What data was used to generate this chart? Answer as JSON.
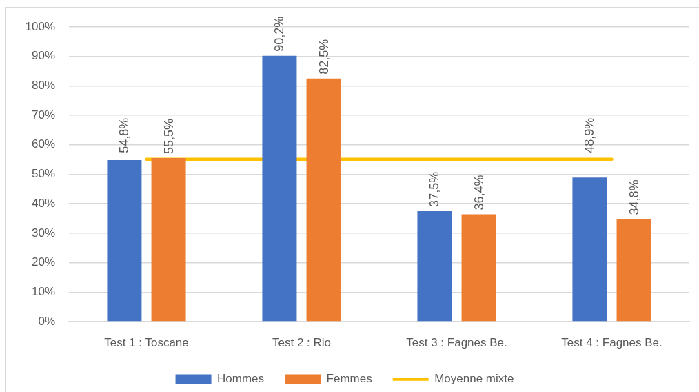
{
  "chart_data": {
    "type": "bar",
    "categories": [
      "Test 1 : Toscane",
      "Test 2 : Rio",
      "Test 3 : Fagnes Be.",
      "Test 4 : Fagnes Be."
    ],
    "series": [
      {
        "name": "Hommes",
        "color": "#4472c4",
        "values": [
          54.8,
          90.2,
          37.5,
          48.9
        ],
        "value_labels": [
          "54,8%",
          "90,2%",
          "37,5%",
          "48,9%"
        ]
      },
      {
        "name": "Femmes",
        "color": "#ed7d31",
        "values": [
          55.5,
          82.5,
          36.4,
          34.8
        ],
        "value_labels": [
          "55,5%",
          "82,5%",
          "36,4%",
          "34,8%"
        ]
      },
      {
        "name": "Moyenne mixte",
        "type": "line",
        "color": "#ffc000",
        "line_style": "solid",
        "values": [
          55.1,
          55.1,
          55.1,
          55.1
        ]
      }
    ],
    "ylim": [
      0,
      100
    ],
    "yticks": [
      {
        "value": 0,
        "label": "0%"
      },
      {
        "value": 10,
        "label": "10%"
      },
      {
        "value": 20,
        "label": "20%"
      },
      {
        "value": 30,
        "label": "30%"
      },
      {
        "value": 40,
        "label": "40%"
      },
      {
        "value": 50,
        "label": "50%"
      },
      {
        "value": 60,
        "label": "60%"
      },
      {
        "value": 70,
        "label": "70%"
      },
      {
        "value": 80,
        "label": "80%"
      },
      {
        "value": 90,
        "label": "90%"
      },
      {
        "value": 100,
        "label": "100%"
      }
    ],
    "grid": "y",
    "legend": "bottom"
  }
}
